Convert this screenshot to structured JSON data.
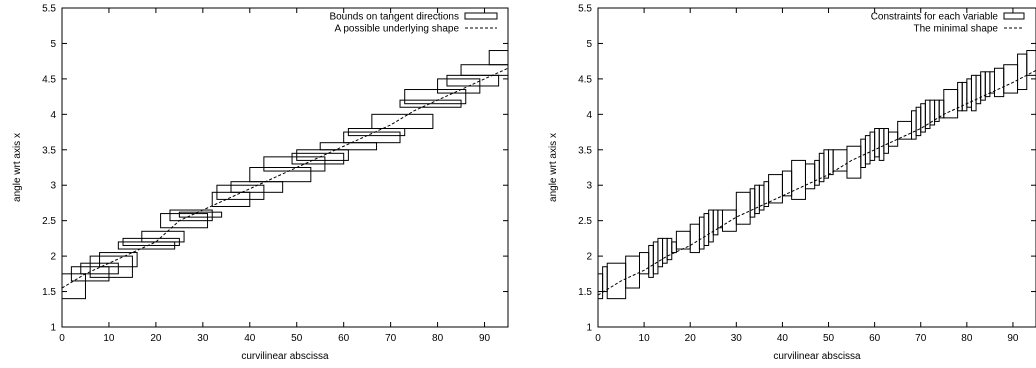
{
  "chart_data": [
    {
      "type": "line",
      "xlabel": "curvilinear abscissa",
      "ylabel": "angle wrt axis x",
      "xlim": [
        0,
        95
      ],
      "ylim": [
        1,
        5.5
      ],
      "xticks": [
        0,
        10,
        20,
        30,
        40,
        50,
        60,
        70,
        80,
        90
      ],
      "yticks": [
        1,
        1.5,
        2,
        2.5,
        3,
        3.5,
        4,
        4.5,
        5,
        5.5
      ],
      "grid": false,
      "legend_position": "top-right",
      "series": [
        {
          "name": "Bounds on tangent directions",
          "style": "box",
          "boxes": [
            [
              0,
              5,
              1.4,
              1.75
            ],
            [
              2,
              10,
              1.65,
              1.85
            ],
            [
              4,
              12,
              1.75,
              1.9
            ],
            [
              6,
              15,
              1.7,
              2.0
            ],
            [
              8,
              16,
              1.85,
              2.05
            ],
            [
              12,
              24,
              2.1,
              2.2
            ],
            [
              13,
              25,
              2.15,
              2.25
            ],
            [
              17,
              26,
              2.2,
              2.35
            ],
            [
              21,
              31,
              2.4,
              2.6
            ],
            [
              23,
              32,
              2.5,
              2.65
            ],
            [
              25,
              34,
              2.55,
              2.62
            ],
            [
              32,
              40,
              2.7,
              2.9
            ],
            [
              33,
              43,
              2.8,
              3.0
            ],
            [
              36,
              47,
              2.9,
              3.05
            ],
            [
              40,
              53,
              3.05,
              3.25
            ],
            [
              43,
              56,
              3.2,
              3.4
            ],
            [
              49,
              60,
              3.3,
              3.45
            ],
            [
              50,
              61,
              3.35,
              3.5
            ],
            [
              55,
              67,
              3.5,
              3.6
            ],
            [
              60,
              72,
              3.6,
              3.75
            ],
            [
              61,
              73,
              3.7,
              3.8
            ],
            [
              66,
              79,
              3.8,
              4.0
            ],
            [
              72,
              85,
              4.1,
              4.2
            ],
            [
              73,
              86,
              4.15,
              4.35
            ],
            [
              80,
              89,
              4.3,
              4.5
            ],
            [
              82,
              93,
              4.4,
              4.55
            ],
            [
              85,
              96,
              4.55,
              4.7
            ],
            [
              91,
              96,
              4.7,
              4.9
            ]
          ]
        },
        {
          "name": "A possible underlying shape",
          "style": "dashed",
          "x": [
            0,
            5,
            10,
            15,
            20,
            25,
            30,
            35,
            40,
            45,
            50,
            55,
            60,
            65,
            70,
            75,
            80,
            85,
            90,
            95
          ],
          "y": [
            1.55,
            1.75,
            1.9,
            2.05,
            2.2,
            2.5,
            2.65,
            2.8,
            2.95,
            3.1,
            3.25,
            3.4,
            3.55,
            3.7,
            3.85,
            4.05,
            4.2,
            4.35,
            4.5,
            4.65
          ]
        }
      ]
    },
    {
      "type": "line",
      "xlabel": "curvilinear abscissa",
      "ylabel": "angle wrt axis x",
      "xlim": [
        0,
        95
      ],
      "ylim": [
        1,
        5.5
      ],
      "xticks": [
        0,
        10,
        20,
        30,
        40,
        50,
        60,
        70,
        80,
        90
      ],
      "yticks": [
        1,
        1.5,
        2,
        2.5,
        3,
        3.5,
        4,
        4.5,
        5,
        5.5
      ],
      "grid": false,
      "legend_position": "top-right",
      "series": [
        {
          "name": "Constraints for each variable",
          "style": "box",
          "boxes": [
            [
              0,
              1,
              1.4,
              1.75
            ],
            [
              1,
              2,
              1.5,
              1.85
            ],
            [
              2,
              6,
              1.4,
              1.9
            ],
            [
              6,
              9,
              1.55,
              2.0
            ],
            [
              9,
              11,
              1.75,
              2.05
            ],
            [
              11,
              12,
              1.7,
              2.15
            ],
            [
              12,
              13,
              1.75,
              2.2
            ],
            [
              13,
              14,
              1.85,
              2.25
            ],
            [
              14,
              15,
              1.9,
              2.25
            ],
            [
              15,
              16,
              1.95,
              2.25
            ],
            [
              16,
              17,
              2.05,
              2.2
            ],
            [
              17,
              20,
              2.1,
              2.35
            ],
            [
              20,
              22,
              2.05,
              2.45
            ],
            [
              22,
              23,
              2.1,
              2.55
            ],
            [
              23,
              24,
              2.15,
              2.6
            ],
            [
              24,
              25,
              2.2,
              2.65
            ],
            [
              25,
              26,
              2.3,
              2.65
            ],
            [
              26,
              27,
              2.4,
              2.65
            ],
            [
              27,
              30,
              2.35,
              2.65
            ],
            [
              30,
              33,
              2.45,
              2.9
            ],
            [
              33,
              34,
              2.55,
              2.95
            ],
            [
              34,
              35,
              2.6,
              3.0
            ],
            [
              35,
              36,
              2.65,
              3.0
            ],
            [
              36,
              37,
              2.7,
              3.05
            ],
            [
              37,
              40,
              2.75,
              3.15
            ],
            [
              40,
              42,
              2.85,
              3.2
            ],
            [
              42,
              45,
              2.8,
              3.35
            ],
            [
              45,
              47,
              2.95,
              3.3
            ],
            [
              47,
              48,
              3.0,
              3.35
            ],
            [
              48,
              49,
              3.05,
              3.45
            ],
            [
              49,
              50,
              3.1,
              3.5
            ],
            [
              50,
              51,
              3.15,
              3.5
            ],
            [
              51,
              54,
              3.2,
              3.5
            ],
            [
              54,
              57,
              3.1,
              3.55
            ],
            [
              57,
              58,
              3.25,
              3.65
            ],
            [
              58,
              59,
              3.3,
              3.7
            ],
            [
              59,
              60,
              3.35,
              3.75
            ],
            [
              60,
              61,
              3.4,
              3.8
            ],
            [
              61,
              62,
              3.35,
              3.8
            ],
            [
              62,
              63,
              3.45,
              3.8
            ],
            [
              63,
              65,
              3.55,
              3.75
            ],
            [
              65,
              68,
              3.65,
              3.9
            ],
            [
              68,
              69,
              3.65,
              4.05
            ],
            [
              69,
              70,
              3.7,
              4.1
            ],
            [
              70,
              71,
              3.75,
              4.15
            ],
            [
              71,
              72,
              3.8,
              4.2
            ],
            [
              72,
              73,
              3.85,
              4.2
            ],
            [
              73,
              74,
              3.9,
              4.2
            ],
            [
              74,
              75,
              3.95,
              4.2
            ],
            [
              75,
              78,
              3.95,
              4.35
            ],
            [
              78,
              79,
              4.05,
              4.45
            ],
            [
              79,
              80,
              4.05,
              4.45
            ],
            [
              80,
              81,
              4.1,
              4.5
            ],
            [
              81,
              82,
              4.05,
              4.55
            ],
            [
              82,
              83,
              4.15,
              4.55
            ],
            [
              83,
              84,
              4.2,
              4.6
            ],
            [
              84,
              85,
              4.25,
              4.6
            ],
            [
              85,
              86,
              4.3,
              4.6
            ],
            [
              86,
              88,
              4.25,
              4.65
            ],
            [
              88,
              91,
              4.3,
              4.7
            ],
            [
              91,
              93,
              4.35,
              4.85
            ],
            [
              93,
              96,
              4.55,
              4.9
            ]
          ]
        },
        {
          "name": "The minimal shape",
          "style": "dashed",
          "x": [
            0,
            5,
            10,
            15,
            20,
            25,
            30,
            35,
            40,
            45,
            50,
            55,
            60,
            65,
            70,
            75,
            80,
            85,
            90,
            95
          ],
          "y": [
            1.45,
            1.65,
            1.8,
            2.0,
            2.15,
            2.35,
            2.55,
            2.7,
            2.85,
            3.0,
            3.15,
            3.35,
            3.5,
            3.65,
            3.8,
            4.0,
            4.15,
            4.3,
            4.45,
            4.62
          ]
        }
      ]
    }
  ]
}
